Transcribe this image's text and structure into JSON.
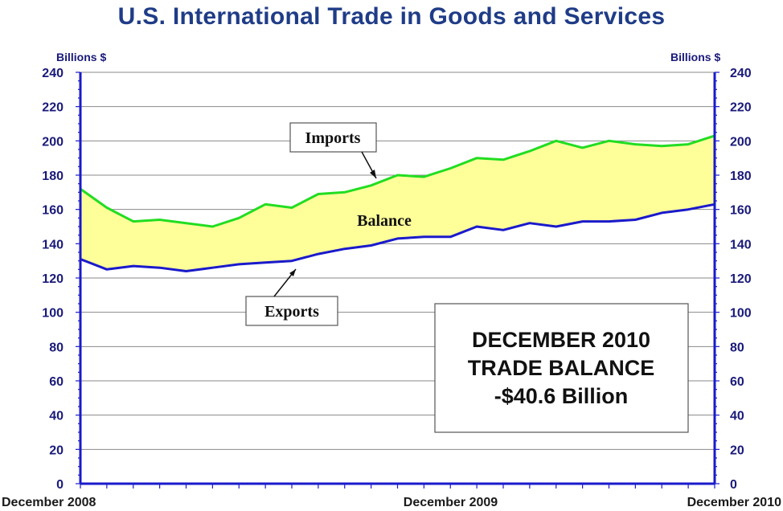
{
  "chart_data": {
    "type": "area",
    "title": "U.S. International Trade in Goods and Services",
    "unit_label_left": "Billions $",
    "unit_label_right": "Billions $",
    "ylim": [
      0,
      240
    ],
    "yticks": [
      "0",
      "20",
      "40",
      "60",
      "80",
      "100",
      "120",
      "140",
      "160",
      "180",
      "200",
      "220",
      "240"
    ],
    "x_tick_labels": [
      "December 2008",
      "December 2009",
      "December 2010"
    ],
    "series": [
      {
        "name": "Imports",
        "color": "#22dd22",
        "values": [
          172,
          161,
          153,
          154,
          152,
          150,
          155,
          163,
          161,
          169,
          170,
          174,
          180,
          179,
          184,
          190,
          189,
          194,
          200,
          196,
          200,
          198,
          197,
          198,
          203
        ]
      },
      {
        "name": "Exports",
        "color": "#1a1acc",
        "values": [
          131,
          125,
          127,
          126,
          124,
          126,
          128,
          129,
          130,
          134,
          137,
          139,
          143,
          144,
          144,
          150,
          148,
          152,
          150,
          153,
          153,
          154,
          158,
          160,
          163
        ]
      }
    ],
    "fill_label": "Balance",
    "fill_color": "#ffff99",
    "grid": true,
    "annotations": {
      "imports_callout": "Imports",
      "exports_callout": "Exports",
      "balance_label": "Balance",
      "summary_lines": [
        "DECEMBER 2010",
        "TRADE BALANCE",
        "-$40.6 Billion"
      ]
    }
  }
}
